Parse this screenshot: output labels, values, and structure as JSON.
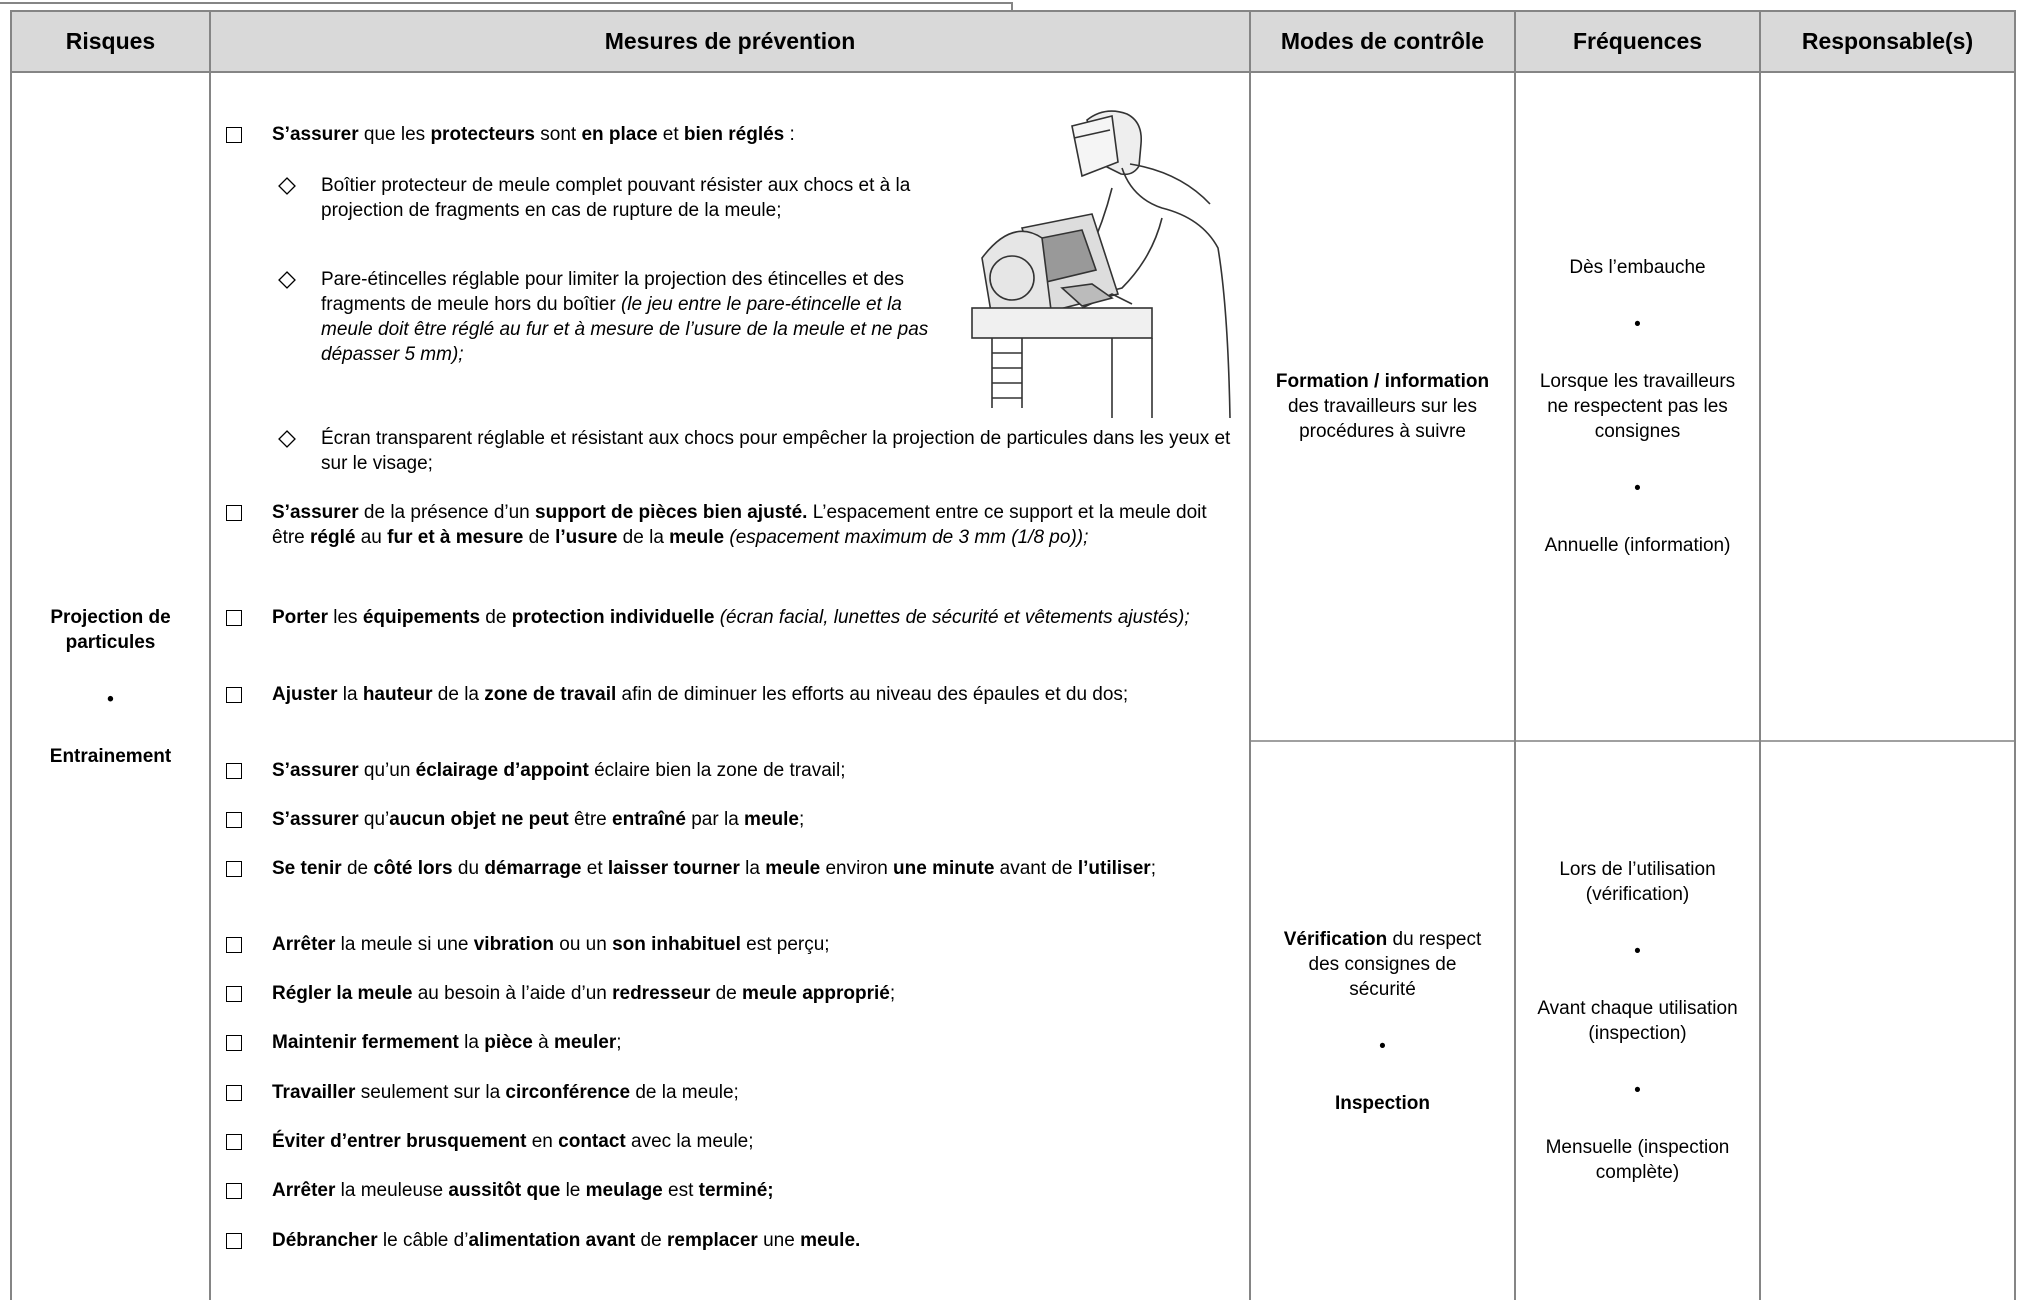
{
  "table": {
    "headers": [
      "Risques",
      "Mesures de prévention",
      "Modes de contrôle",
      "Fréquences",
      "Responsable(s)"
    ],
    "risks": [
      "Projection de particules",
      "•",
      "Entrainement"
    ],
    "measures": [
      {
        "kind": "item",
        "runs": [
          {
            "text": "S’assurer",
            "bold": true
          },
          {
            "text": " que les "
          },
          {
            "text": "protecteurs",
            "bold": true
          },
          {
            "text": " sont "
          },
          {
            "text": "en place",
            "bold": true
          },
          {
            "text": " et "
          },
          {
            "text": "bien réglés",
            "bold": true
          },
          {
            "text": " :"
          }
        ]
      },
      {
        "kind": "sub",
        "runs": [
          {
            "text": "Boîtier protecteur de meule complet pouvant résister aux chocs et à la projection de fragments en cas de rupture de la meule;"
          }
        ]
      },
      {
        "kind": "sub",
        "runs": [
          {
            "text": "Pare-étincelles réglable pour limiter la projection des étincelles et des fragments de meule hors du boîtier "
          },
          {
            "text": "(le jeu entre le pare-étincelle et la meule doit être réglé au fur et à mesure de l’usure de la meule et ne pas dépasser 5 mm);",
            "italic": true
          }
        ]
      },
      {
        "kind": "sub",
        "runs": [
          {
            "text": "Écran transparent réglable et résistant aux chocs pour empêcher la projection de particules dans les yeux et sur le visage;"
          }
        ]
      },
      {
        "kind": "item",
        "runs": [
          {
            "text": "S’assurer",
            "bold": true
          },
          {
            "text": " de la présence d’un "
          },
          {
            "text": "support de pièces bien ajusté.",
            "bold": true
          },
          {
            "text": " L’espacement entre ce support et la meule doit être "
          },
          {
            "text": "réglé",
            "bold": true
          },
          {
            "text": " au "
          },
          {
            "text": "fur et à mesure",
            "bold": true
          },
          {
            "text": " de "
          },
          {
            "text": "l’usure",
            "bold": true
          },
          {
            "text": " de la "
          },
          {
            "text": "meule",
            "bold": true
          },
          {
            "text": " (espacement maximum de 3 mm (1/8 po));",
            "italic": true
          }
        ]
      },
      {
        "kind": "item",
        "runs": [
          {
            "text": "Porter",
            "bold": true
          },
          {
            "text": " les "
          },
          {
            "text": "équipements",
            "bold": true
          },
          {
            "text": " de "
          },
          {
            "text": "protection individuelle",
            "bold": true
          },
          {
            "text": " (écran facial, lunettes de sécurité et vêtements ajustés);",
            "italic": true
          }
        ]
      },
      {
        "kind": "item",
        "runs": [
          {
            "text": "Ajuster",
            "bold": true
          },
          {
            "text": " la "
          },
          {
            "text": "hauteur",
            "bold": true
          },
          {
            "text": " de la "
          },
          {
            "text": "zone de travail",
            "bold": true
          },
          {
            "text": " afin de diminuer les efforts au niveau des épaules et du dos;"
          }
        ]
      },
      {
        "kind": "item",
        "runs": [
          {
            "text": "S’assurer",
            "bold": true
          },
          {
            "text": " qu’un "
          },
          {
            "text": "éclairage d’appoint",
            "bold": true
          },
          {
            "text": " éclaire bien la zone de travail;"
          }
        ]
      },
      {
        "kind": "item",
        "runs": [
          {
            "text": "S’assurer",
            "bold": true
          },
          {
            "text": " qu’"
          },
          {
            "text": "aucun objet ne peut",
            "bold": true
          },
          {
            "text": " être "
          },
          {
            "text": "entraîné",
            "bold": true
          },
          {
            "text": " par la "
          },
          {
            "text": "meule",
            "bold": true
          },
          {
            "text": ";"
          }
        ]
      },
      {
        "kind": "item",
        "runs": [
          {
            "text": "Se tenir",
            "bold": true
          },
          {
            "text": " de "
          },
          {
            "text": "côté lors",
            "bold": true
          },
          {
            "text": " du "
          },
          {
            "text": "démarrage",
            "bold": true
          },
          {
            "text": " et "
          },
          {
            "text": "laisser tourner",
            "bold": true
          },
          {
            "text": " la "
          },
          {
            "text": "meule",
            "bold": true
          },
          {
            "text": " environ "
          },
          {
            "text": "une minute",
            "bold": true
          },
          {
            "text": " avant de "
          },
          {
            "text": "l’utiliser",
            "bold": true
          },
          {
            "text": ";"
          }
        ]
      },
      {
        "kind": "item",
        "runs": [
          {
            "text": "Arrêter",
            "bold": true
          },
          {
            "text": " la meule si une "
          },
          {
            "text": "vibration",
            "bold": true
          },
          {
            "text": " ou un "
          },
          {
            "text": "son inhabituel",
            "bold": true
          },
          {
            "text": " est perçu;"
          }
        ]
      },
      {
        "kind": "item",
        "runs": [
          {
            "text": "Régler la meule",
            "bold": true
          },
          {
            "text": " au besoin à l’aide d’un "
          },
          {
            "text": "redresseur",
            "bold": true
          },
          {
            "text": " de "
          },
          {
            "text": "meule approprié",
            "bold": true
          },
          {
            "text": ";"
          }
        ]
      },
      {
        "kind": "item",
        "runs": [
          {
            "text": "Maintenir fermement",
            "bold": true
          },
          {
            "text": " la "
          },
          {
            "text": "pièce",
            "bold": true
          },
          {
            "text": " à "
          },
          {
            "text": "meuler",
            "bold": true
          },
          {
            "text": ";"
          }
        ]
      },
      {
        "kind": "item",
        "runs": [
          {
            "text": "Travailler",
            "bold": true
          },
          {
            "text": " seulement sur la "
          },
          {
            "text": "circonférence",
            "bold": true
          },
          {
            "text": " de la meule;"
          }
        ]
      },
      {
        "kind": "item",
        "runs": [
          {
            "text": "Éviter d’entrer brusquement",
            "bold": true
          },
          {
            "text": " en "
          },
          {
            "text": "contact",
            "bold": true
          },
          {
            "text": " avec la meule;"
          }
        ]
      },
      {
        "kind": "item",
        "runs": [
          {
            "text": "Arrêter",
            "bold": true
          },
          {
            "text": " la meuleuse "
          },
          {
            "text": "aussitôt que",
            "bold": true
          },
          {
            "text": " le "
          },
          {
            "text": "meulage",
            "bold": true
          },
          {
            "text": " est "
          },
          {
            "text": "terminé;",
            "bold": true
          }
        ]
      },
      {
        "kind": "item",
        "runs": [
          {
            "text": "Débrancher",
            "bold": true
          },
          {
            "text": " le câble d’"
          },
          {
            "text": "alimentation avant",
            "bold": true
          },
          {
            "text": " de "
          },
          {
            "text": "remplacer",
            "bold": true
          },
          {
            "text": " une "
          },
          {
            "text": "meule.",
            "bold": true
          }
        ]
      }
    ],
    "rows": [
      {
        "control": [
          {
            "runs": [
              {
                "text": "Formation / information",
                "bold": true
              },
              {
                "text": " des travailleurs sur les procédures à suivre"
              }
            ]
          }
        ],
        "frequencies": [
          "Dès l’embauche",
          "•",
          "Lorsque les travailleurs ne respectent pas les consignes",
          "•",
          "Annuelle (information)"
        ]
      },
      {
        "control": [
          {
            "runs": [
              {
                "text": "Vérification",
                "bold": true
              },
              {
                "text": " du respect des consignes de sécurité"
              }
            ]
          },
          {
            "runs": [
              {
                "text": "•"
              }
            ]
          },
          {
            "runs": [
              {
                "text": "Inspection",
                "bold": true
              }
            ]
          }
        ],
        "frequencies": [
          "Lors de l’utilisation (vérification)",
          "•",
          "Avant chaque utilisation (inspection)",
          "•",
          "Mensuelle (inspection complète)"
        ]
      }
    ]
  }
}
